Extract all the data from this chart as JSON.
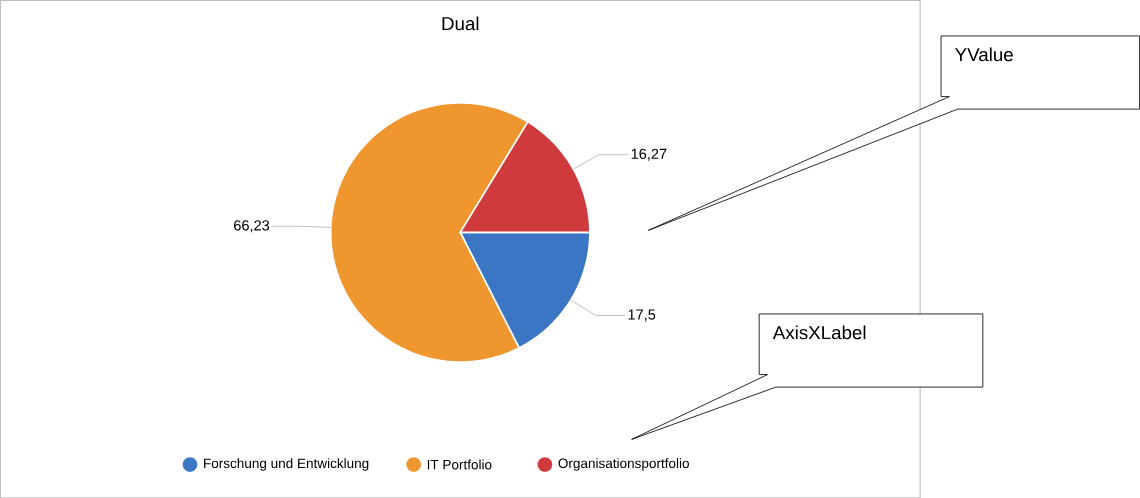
{
  "chart_data": {
    "type": "pie",
    "title": "Dual",
    "categories": [
      "Forschung und Entwicklung",
      "IT Portfolio",
      "Organisationsportfolio"
    ],
    "values": [
      17.5,
      66.23,
      16.27
    ],
    "value_labels": [
      "17,5",
      "66,23",
      "16,27"
    ],
    "colors": [
      "#3a76c4",
      "#f0962e",
      "#cf3b3c"
    ],
    "legend": "bottom",
    "annotations": [
      "YValue",
      "AxisXLabel"
    ]
  }
}
